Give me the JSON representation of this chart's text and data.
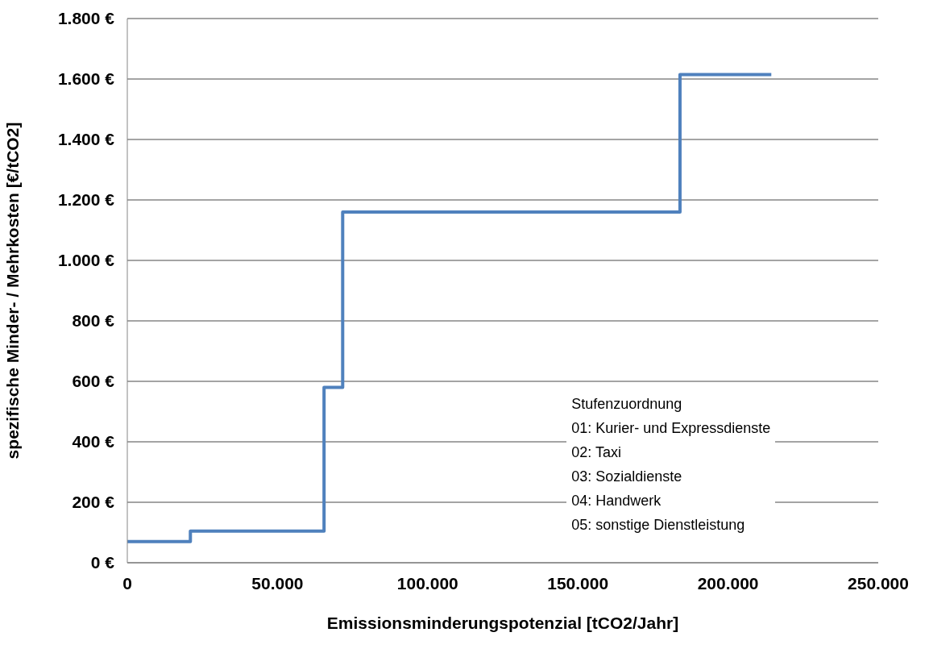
{
  "chart_data": {
    "type": "step",
    "xlabel": "Emissionsminderungspotenzial [tCO2/Jahr]",
    "ylabel": "spezifische Minder- / Mehrkosten [€/tCO2]",
    "x": [
      0,
      21000,
      65500,
      71700,
      184000,
      214400
    ],
    "series": [
      {
        "color": "#4f81bd",
        "values": [
          70,
          105,
          580,
          1160,
          1615,
          1615
        ]
      }
    ],
    "xlim": [
      0,
      250000
    ],
    "xticks": [
      {
        "value": 0,
        "label": "0"
      },
      {
        "value": 50000,
        "label": "50.000"
      },
      {
        "value": 100000,
        "label": "100.000"
      },
      {
        "value": 150000,
        "label": "150.000"
      },
      {
        "value": 200000,
        "label": "200.000"
      },
      {
        "value": 250000,
        "label": "250.000"
      }
    ],
    "ylim": [
      0,
      1800
    ],
    "yticks": [
      {
        "value": 0,
        "label": "0 €"
      },
      {
        "value": 200,
        "label": "200 €"
      },
      {
        "value": 400,
        "label": "400 €"
      },
      {
        "value": 600,
        "label": "600 €"
      },
      {
        "value": 800,
        "label": "800 €"
      },
      {
        "value": 1000,
        "label": "1.000 €"
      },
      {
        "value": 1200,
        "label": "1.200 €"
      },
      {
        "value": 1400,
        "label": "1.400 €"
      },
      {
        "value": 1600,
        "label": "1.600 €"
      },
      {
        "value": 1800,
        "label": "1.800 €"
      }
    ],
    "grid": "y",
    "marker": "none",
    "line_style": "solid",
    "annotations": [
      "Stufenzuordnung",
      "01: Kurier- und Expressdienste",
      "02: Taxi",
      "03: Sozialdienste",
      "04: Handwerk",
      "05: sonstige Dienstleistung"
    ]
  }
}
